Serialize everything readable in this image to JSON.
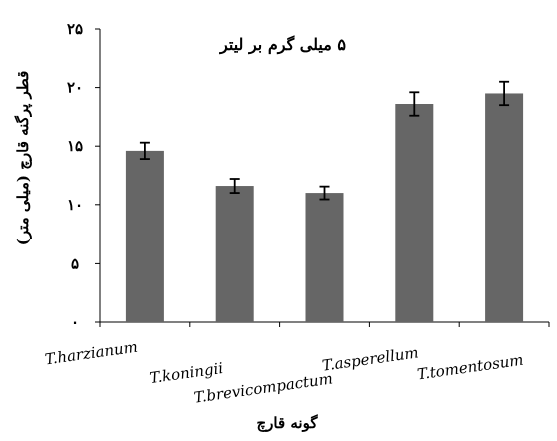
{
  "chart_data": {
    "type": "bar",
    "title": "۵ میلی گرم بر لیتر",
    "xlabel": "گونه قارچ",
    "ylabel": "قطر پرگنه قارچ (میلی متر)",
    "categories": [
      "T.harzianum",
      "T.koningii",
      "T.brevicompactum",
      "T.asperellum",
      "T.tomentosum"
    ],
    "values": [
      14.6,
      11.6,
      11.0,
      18.6,
      19.5
    ],
    "errors": [
      0.7,
      0.6,
      0.55,
      1.0,
      1.0
    ],
    "ylim": [
      0,
      25
    ],
    "yticks": [
      0,
      5,
      10,
      15,
      20,
      25
    ],
    "ytick_labels": [
      "۰",
      "۵",
      "۱۰",
      "۱۵",
      "۲۰",
      "۲۵"
    ],
    "grid": false,
    "bar_color": "#666666"
  }
}
